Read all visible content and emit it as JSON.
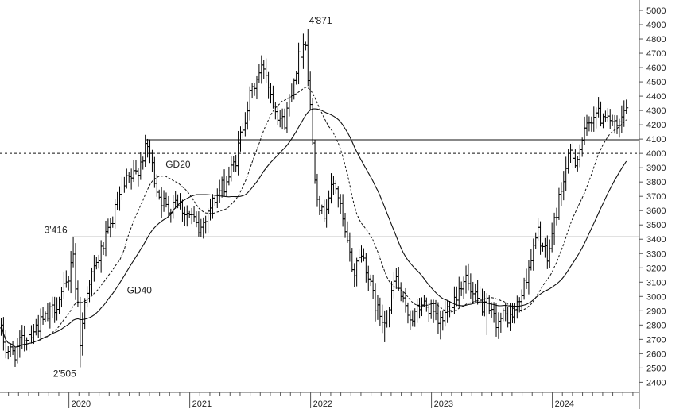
{
  "chart_data": {
    "type": "ohlc",
    "title": "",
    "xlabel": "",
    "ylabel": "",
    "ylim": [
      2330,
      5050
    ],
    "y_ticks": [
      2400,
      2500,
      2600,
      2700,
      2800,
      2900,
      3000,
      3100,
      3200,
      3300,
      3400,
      3500,
      3600,
      3700,
      3800,
      3900,
      4000,
      4100,
      4200,
      4300,
      4400,
      4500,
      4600,
      4700,
      4800,
      4900,
      5000
    ],
    "x_ticks": [
      {
        "label": "2020",
        "t": 2020.0
      },
      {
        "label": "2021",
        "t": 2021.0
      },
      {
        "label": "2022",
        "t": 2022.0
      },
      {
        "label": "2023",
        "t": 2023.0
      },
      {
        "label": "2024",
        "t": 2024.0
      }
    ],
    "xlim": [
      2019.43,
      2024.72
    ],
    "horizontal_lines": [
      {
        "value": 4000,
        "style": "dotted",
        "from": 2019.43
      },
      {
        "value": 4095,
        "style": "solid",
        "from": 2020.64
      },
      {
        "value": 3416,
        "style": "solid",
        "from": 2020.03
      }
    ],
    "price_waypoints": [
      [
        2019.43,
        2780
      ],
      [
        2019.48,
        2630
      ],
      [
        2019.55,
        2600
      ],
      [
        2019.62,
        2700
      ],
      [
        2019.72,
        2780
      ],
      [
        2019.82,
        2850
      ],
      [
        2019.92,
        2980
      ],
      [
        2020.0,
        3100
      ],
      [
        2020.03,
        3400
      ],
      [
        2020.05,
        3100
      ],
      [
        2020.08,
        2900
      ],
      [
        2020.1,
        2600
      ],
      [
        2020.12,
        2900
      ],
      [
        2020.16,
        3100
      ],
      [
        2020.22,
        3200
      ],
      [
        2020.28,
        3350
      ],
      [
        2020.33,
        3450
      ],
      [
        2020.4,
        3650
      ],
      [
        2020.48,
        3800
      ],
      [
        2020.55,
        3850
      ],
      [
        2020.62,
        4000
      ],
      [
        2020.66,
        4050
      ],
      [
        2020.7,
        3850
      ],
      [
        2020.75,
        3700
      ],
      [
        2020.82,
        3600
      ],
      [
        2020.88,
        3700
      ],
      [
        2020.95,
        3600
      ],
      [
        2021.02,
        3550
      ],
      [
        2021.08,
        3450
      ],
      [
        2021.15,
        3600
      ],
      [
        2021.22,
        3700
      ],
      [
        2021.3,
        3800
      ],
      [
        2021.38,
        3950
      ],
      [
        2021.44,
        4200
      ],
      [
        2021.5,
        4400
      ],
      [
        2021.57,
        4550
      ],
      [
        2021.62,
        4620
      ],
      [
        2021.66,
        4450
      ],
      [
        2021.72,
        4300
      ],
      [
        2021.78,
        4200
      ],
      [
        2021.83,
        4400
      ],
      [
        2021.88,
        4600
      ],
      [
        2021.93,
        4750
      ],
      [
        2021.96,
        4800
      ],
      [
        2021.98,
        4500
      ],
      [
        2022.0,
        4300
      ],
      [
        2022.03,
        3900
      ],
      [
        2022.06,
        3700
      ],
      [
        2022.1,
        3550
      ],
      [
        2022.15,
        3700
      ],
      [
        2022.2,
        3800
      ],
      [
        2022.24,
        3650
      ],
      [
        2022.28,
        3450
      ],
      [
        2022.32,
        3300
      ],
      [
        2022.36,
        3150
      ],
      [
        2022.4,
        3300
      ],
      [
        2022.45,
        3250
      ],
      [
        2022.5,
        3050
      ],
      [
        2022.55,
        2900
      ],
      [
        2022.6,
        2850
      ],
      [
        2022.65,
        2900
      ],
      [
        2022.7,
        3150
      ],
      [
        2022.73,
        3050
      ],
      [
        2022.78,
        2900
      ],
      [
        2022.85,
        2850
      ],
      [
        2022.92,
        2950
      ],
      [
        2023.0,
        2900
      ],
      [
        2023.05,
        2800
      ],
      [
        2023.1,
        2850
      ],
      [
        2023.15,
        2950
      ],
      [
        2023.2,
        3000
      ],
      [
        2023.25,
        3100
      ],
      [
        2023.28,
        3150
      ],
      [
        2023.33,
        3000
      ],
      [
        2023.4,
        2950
      ],
      [
        2023.48,
        2880
      ],
      [
        2023.55,
        2820
      ],
      [
        2023.6,
        2860
      ],
      [
        2023.66,
        2850
      ],
      [
        2023.72,
        2950
      ],
      [
        2023.76,
        3050
      ],
      [
        2023.8,
        3200
      ],
      [
        2023.85,
        3350
      ],
      [
        2023.88,
        3450
      ],
      [
        2023.92,
        3350
      ],
      [
        2023.96,
        3250
      ],
      [
        2024.0,
        3450
      ],
      [
        2024.06,
        3700
      ],
      [
        2024.1,
        3850
      ],
      [
        2024.15,
        4000
      ],
      [
        2024.2,
        3950
      ],
      [
        2024.25,
        4100
      ],
      [
        2024.3,
        4200
      ],
      [
        2024.35,
        4300
      ],
      [
        2024.4,
        4250
      ],
      [
        2024.45,
        4300
      ],
      [
        2024.5,
        4200
      ],
      [
        2024.54,
        4150
      ],
      [
        2024.58,
        4250
      ],
      [
        2024.62,
        4350
      ]
    ],
    "series": [
      {
        "name": "GD20",
        "style": "dashed"
      },
      {
        "name": "GD40",
        "style": "solid"
      }
    ],
    "annotations": [
      {
        "text": "4'871",
        "x": 2022.0,
        "y": 4871,
        "anchor": "start"
      },
      {
        "text": "3'416",
        "x": 2020.0,
        "y": 3416,
        "anchor": "end"
      },
      {
        "text": "2'505",
        "x": 2020.08,
        "y": 2505,
        "anchor": "end"
      },
      {
        "text": "GD20",
        "x": 2020.8,
        "y": 3900,
        "anchor": "start"
      },
      {
        "text": "GD40",
        "x": 2020.48,
        "y": 3020,
        "anchor": "start"
      }
    ],
    "grid": false,
    "legend": "none"
  }
}
